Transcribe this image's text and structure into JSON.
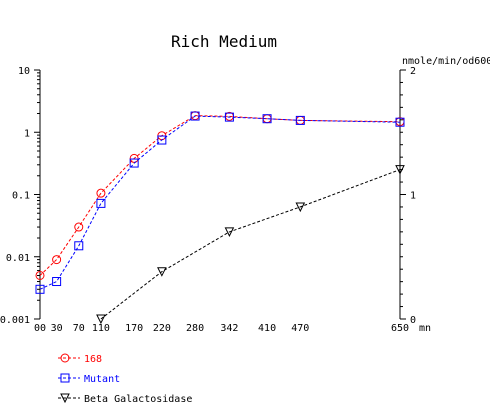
{
  "chart_data": {
    "type": "line",
    "title": "Rich Medium",
    "x_unit": "mn",
    "right_axis_unit": "nmole/min/od600",
    "x": [
      0,
      30,
      70,
      110,
      170,
      220,
      280,
      342,
      410,
      470,
      650
    ],
    "x_tick_labels": [
      "00",
      "30",
      "70",
      "110",
      "170",
      "220",
      "280",
      "342",
      "410",
      "470",
      "650"
    ],
    "xlim": [
      0,
      650
    ],
    "y_left_scale": "log",
    "y_left_lim": [
      0.001,
      10
    ],
    "y_left_ticks": [
      "10",
      "1",
      "0.1",
      "0.01",
      "0.001"
    ],
    "y_right_lim": [
      0,
      2
    ],
    "y_right_ticks": [
      "2",
      "1",
      "0"
    ],
    "grid": false,
    "legend_position": "bottom-left",
    "series": [
      {
        "name": "168",
        "axis": "left",
        "color": "#ff0000",
        "marker": "circle",
        "x": [
          0,
          30,
          70,
          110,
          170,
          220,
          280,
          342,
          410,
          470,
          650
        ],
        "values": [
          0.005,
          0.009,
          0.03,
          0.105,
          0.38,
          0.88,
          1.85,
          1.8,
          1.65,
          1.55,
          1.48
        ]
      },
      {
        "name": "Mutant",
        "axis": "left",
        "color": "#0000ff",
        "marker": "square",
        "x": [
          0,
          30,
          70,
          110,
          170,
          220,
          280,
          342,
          410,
          470,
          650
        ],
        "values": [
          0.003,
          0.004,
          0.015,
          0.072,
          0.32,
          0.75,
          1.82,
          1.75,
          1.65,
          1.55,
          1.45
        ]
      },
      {
        "name": "Beta Galactosidase",
        "axis": "right",
        "color": "#000000",
        "marker": "triangle-down",
        "x": [
          110,
          220,
          342,
          470,
          650
        ],
        "values": [
          0.0,
          0.38,
          0.7,
          0.9,
          1.2
        ]
      }
    ]
  }
}
